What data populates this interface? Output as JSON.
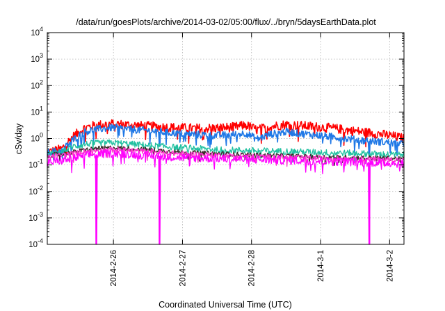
{
  "chart_data": {
    "type": "line",
    "title": "/data/run/goesPlots/archive/2014-03-02/05:00/flux/../bryn/5daysEarthData.plot",
    "xlabel": "Coordinated Universal Time (UTC)",
    "ylabel": "cSv/day",
    "y_scale": "log",
    "ylim": [
      "1e-4",
      "1e4"
    ],
    "xlim": [
      "2014-02-25T01:00",
      "2014-03-02T05:00"
    ],
    "grid": true,
    "legend": "none",
    "x_ticks": [
      "2014-2-26",
      "2014-2-27",
      "2014-2-28",
      "2014-3-1",
      "2014-3-2"
    ],
    "y_ticks": [
      {
        "base": "10",
        "exp": "-4"
      },
      {
        "base": "10",
        "exp": "-3"
      },
      {
        "base": "10",
        "exp": "-2"
      },
      {
        "base": "10",
        "exp": "-1"
      },
      {
        "base": "10",
        "exp": "0"
      },
      {
        "base": "10",
        "exp": "1"
      },
      {
        "base": "10",
        "exp": "2"
      },
      {
        "base": "10",
        "exp": "3"
      },
      {
        "base": "10",
        "exp": "4"
      }
    ],
    "series": [
      {
        "color": "#ff0000",
        "x": [
          "2014-02-25T01:00",
          "2014-02-25T06:00",
          "2014-02-25T10:00",
          "2014-02-25T14:00",
          "2014-02-25T18:00",
          "2014-02-26T00:00",
          "2014-02-26T06:00",
          "2014-02-26T12:00",
          "2014-02-26T18:00",
          "2014-02-27T00:00",
          "2014-02-27T06:00",
          "2014-02-27T12:00",
          "2014-02-27T18:00",
          "2014-02-27T22:00",
          "2014-02-28T02:00",
          "2014-02-28T06:00",
          "2014-02-28T12:00",
          "2014-02-28T18:00",
          "2014-03-01T00:00",
          "2014-03-01T06:00",
          "2014-03-01T12:00",
          "2014-03-01T18:00",
          "2014-03-02T00:00",
          "2014-03-02T05:00"
        ],
        "y": [
          0.3,
          0.4,
          1.2,
          2.5,
          3.2,
          3.6,
          3.2,
          2.9,
          2.7,
          2.5,
          2.4,
          2.5,
          2.7,
          3.2,
          2.1,
          2.8,
          3.4,
          3.0,
          2.7,
          2.3,
          1.9,
          1.6,
          1.3,
          1.0
        ],
        "noise": 0.18
      },
      {
        "color": "#1f78e6",
        "x": [
          "2014-02-25T01:00",
          "2014-02-25T06:00",
          "2014-02-25T10:00",
          "2014-02-25T14:00",
          "2014-02-25T18:00",
          "2014-02-26T00:00",
          "2014-02-26T06:00",
          "2014-02-26T12:00",
          "2014-02-26T18:00",
          "2014-02-27T00:00",
          "2014-02-27T06:00",
          "2014-02-27T12:00",
          "2014-02-27T18:00",
          "2014-02-27T22:00",
          "2014-02-28T02:00",
          "2014-02-28T06:00",
          "2014-02-28T12:00",
          "2014-02-28T18:00",
          "2014-03-01T00:00",
          "2014-03-01T06:00",
          "2014-03-01T12:00",
          "2014-03-01T18:00",
          "2014-03-02T00:00",
          "2014-03-02T05:00"
        ],
        "y": [
          0.3,
          0.35,
          0.9,
          1.8,
          2.2,
          2.6,
          2.2,
          2.0,
          1.7,
          1.5,
          1.4,
          1.3,
          1.4,
          1.6,
          0.95,
          1.4,
          1.8,
          1.5,
          1.3,
          1.1,
          0.9,
          0.8,
          0.7,
          0.6
        ],
        "noise": 0.14,
        "dips": [
          "2014-02-26T16:00",
          "2014-03-01T17:00"
        ]
      },
      {
        "color": "#20c0a0",
        "x": [
          "2014-02-25T01:00",
          "2014-02-25T06:00",
          "2014-02-25T10:00",
          "2014-02-25T16:00",
          "2014-02-26T00:00",
          "2014-02-26T12:00",
          "2014-02-27T00:00",
          "2014-02-27T12:00",
          "2014-02-28T00:00",
          "2014-02-28T12:00",
          "2014-03-01T00:00",
          "2014-03-01T12:00",
          "2014-03-02T00:00",
          "2014-03-02T05:00"
        ],
        "y": [
          0.25,
          0.3,
          0.5,
          0.65,
          0.7,
          0.55,
          0.45,
          0.38,
          0.35,
          0.33,
          0.3,
          0.28,
          0.25,
          0.24
        ],
        "noise": 0.12
      },
      {
        "color": "#3a2a2a",
        "x": [
          "2014-02-25T01:00",
          "2014-02-25T08:00",
          "2014-02-25T16:00",
          "2014-02-26T00:00",
          "2014-02-26T12:00",
          "2014-02-27T00:00",
          "2014-02-28T00:00",
          "2014-03-01T00:00",
          "2014-03-02T00:00",
          "2014-03-02T05:00"
        ],
        "y": [
          0.22,
          0.28,
          0.4,
          0.45,
          0.38,
          0.3,
          0.24,
          0.2,
          0.18,
          0.17
        ],
        "noise": 0.09
      },
      {
        "color": "#ff33cc",
        "x": [
          "2014-02-25T01:00",
          "2014-02-25T08:00",
          "2014-02-25T16:00",
          "2014-02-26T00:00",
          "2014-02-26T12:00",
          "2014-02-27T00:00",
          "2014-02-28T00:00",
          "2014-03-01T00:00",
          "2014-03-02T00:00",
          "2014-03-02T05:00"
        ],
        "y": [
          0.2,
          0.25,
          0.35,
          0.38,
          0.32,
          0.26,
          0.21,
          0.18,
          0.16,
          0.15
        ],
        "noise": 0.1
      },
      {
        "color": "#ff00ff",
        "x": [
          "2014-02-25T01:00",
          "2014-02-25T08:00",
          "2014-02-25T16:00",
          "2014-02-26T00:00",
          "2014-02-26T12:00",
          "2014-02-27T00:00",
          "2014-02-28T00:00",
          "2014-03-01T00:00",
          "2014-03-02T00:00",
          "2014-03-02T05:00"
        ],
        "y": [
          0.12,
          0.16,
          0.24,
          0.28,
          0.23,
          0.19,
          0.16,
          0.14,
          0.12,
          0.11
        ],
        "noise": 0.16,
        "spikes": [
          "2014-02-25T18:00",
          "2014-02-26T16:00",
          "2014-03-01T17:00"
        ],
        "spike_to": "1e-4"
      }
    ]
  }
}
